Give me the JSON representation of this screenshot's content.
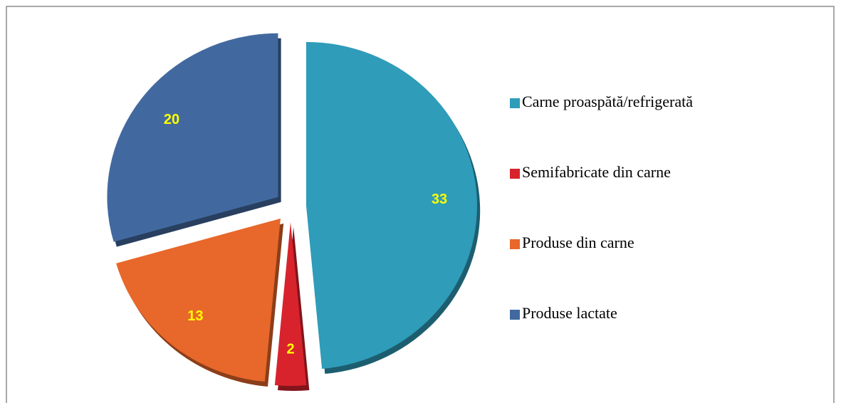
{
  "chart_data": {
    "type": "pie",
    "categories": [
      "Carne proaspătă/refrigerată",
      "Semifabricate din carne",
      "Produse din carne",
      "Produse lactate"
    ],
    "values": [
      33,
      2,
      13,
      20
    ],
    "colors": [
      "#2f9cb9",
      "#d8232d",
      "#e8672a",
      "#42699f"
    ],
    "legend": "right"
  }
}
